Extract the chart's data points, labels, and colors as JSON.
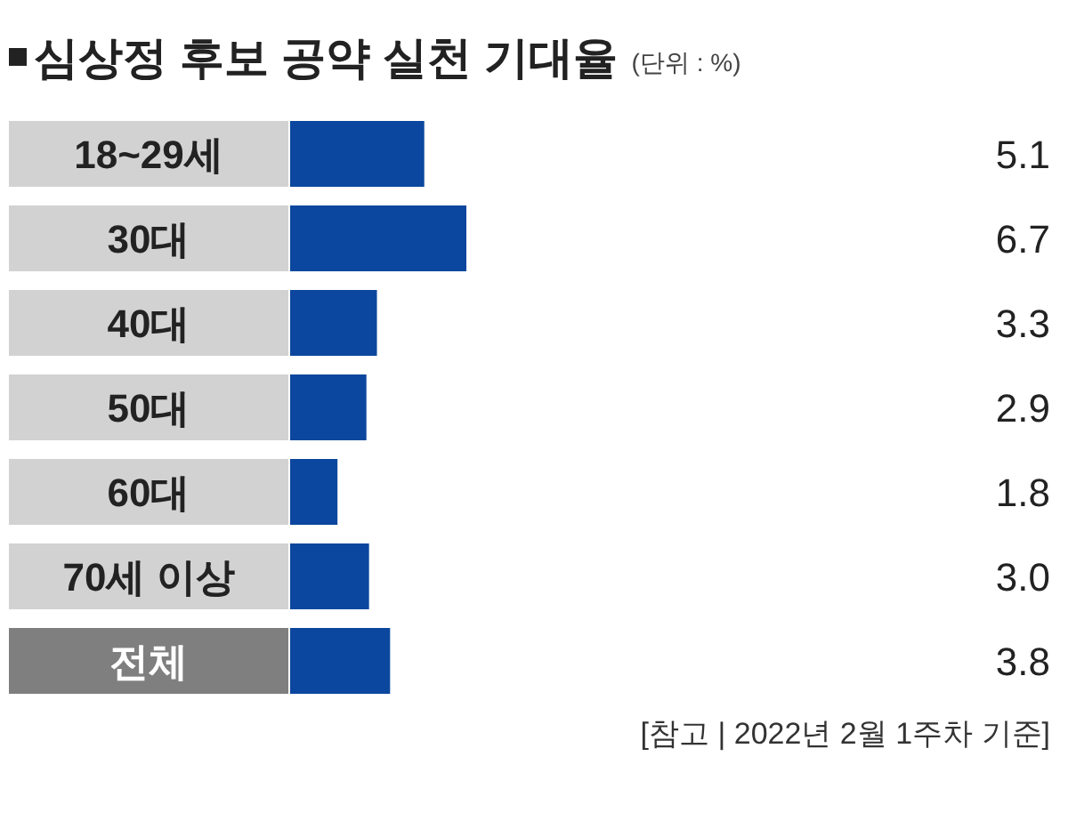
{
  "chart_data": {
    "type": "bar",
    "orientation": "horizontal",
    "title": "심상정 후보 공약 실천 기대율",
    "subtitle": "(단위 : %)",
    "categories": [
      "18~29세",
      "30대",
      "40대",
      "50대",
      "60대",
      "70세 이상",
      "전체"
    ],
    "values": [
      5.1,
      6.7,
      3.3,
      2.9,
      1.8,
      3.0,
      3.8
    ],
    "value_labels": [
      "5.1",
      "6.7",
      "3.3",
      "2.9",
      "1.8",
      "3.0",
      "3.8"
    ],
    "color": "#0b479e",
    "annotations": [
      "[참고 | 2022년 2월 1주차 기준]"
    ]
  }
}
